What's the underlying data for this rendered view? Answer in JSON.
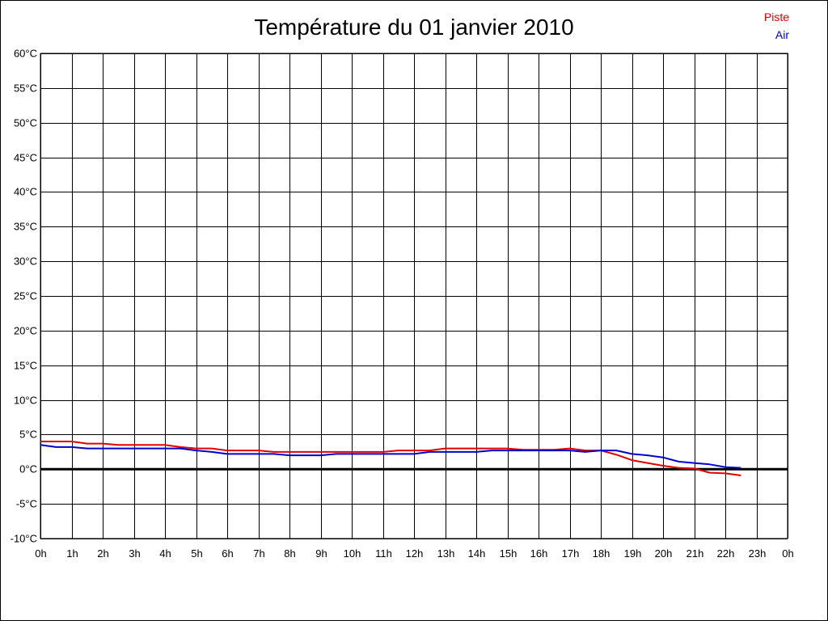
{
  "chart_data": {
    "type": "line",
    "title": "Température du 01 janvier 2010",
    "ylim": [
      -10,
      60
    ],
    "xlim": [
      0,
      24
    ],
    "y_ticks": [
      60,
      55,
      50,
      45,
      40,
      35,
      30,
      25,
      20,
      15,
      10,
      5,
      0,
      -5,
      -10
    ],
    "y_tick_labels": [
      "60°C",
      "55°C",
      "50°C",
      "45°C",
      "40°C",
      "35°C",
      "30°C",
      "25°C",
      "20°C",
      "15°C",
      "10°C",
      "5°C",
      "0°C",
      "-5°C",
      "-10°C"
    ],
    "x_tick_labels": [
      "0h",
      "1h",
      "2h",
      "3h",
      "4h",
      "5h",
      "6h",
      "7h",
      "8h",
      "9h",
      "10h",
      "11h",
      "12h",
      "13h",
      "14h",
      "15h",
      "16h",
      "17h",
      "18h",
      "19h",
      "20h",
      "21h",
      "22h",
      "23h",
      "0h"
    ],
    "grid": true,
    "zero_line": true,
    "legend_position": "top-right",
    "series": [
      {
        "name": "Piste",
        "color": "#e00000",
        "points": [
          [
            0,
            4.0
          ],
          [
            1,
            4.0
          ],
          [
            1.5,
            3.7
          ],
          [
            2,
            3.7
          ],
          [
            2.5,
            3.5
          ],
          [
            3,
            3.5
          ],
          [
            4,
            3.5
          ],
          [
            4.5,
            3.2
          ],
          [
            5,
            3.0
          ],
          [
            5.5,
            3.0
          ],
          [
            6,
            2.7
          ],
          [
            7,
            2.7
          ],
          [
            7.5,
            2.5
          ],
          [
            8,
            2.5
          ],
          [
            9,
            2.5
          ],
          [
            10,
            2.5
          ],
          [
            11,
            2.5
          ],
          [
            11.5,
            2.7
          ],
          [
            12,
            2.7
          ],
          [
            12.5,
            2.7
          ],
          [
            13,
            3.0
          ],
          [
            14,
            3.0
          ],
          [
            15,
            3.0
          ],
          [
            15.5,
            2.8
          ],
          [
            16,
            2.8
          ],
          [
            16.5,
            2.8
          ],
          [
            17,
            3.0
          ],
          [
            17.5,
            2.7
          ],
          [
            18,
            2.7
          ],
          [
            18.5,
            2.1
          ],
          [
            19,
            1.3
          ],
          [
            19.5,
            0.9
          ],
          [
            20,
            0.5
          ],
          [
            20.5,
            0.2
          ],
          [
            21,
            0.1
          ],
          [
            21.5,
            -0.5
          ],
          [
            22,
            -0.6
          ],
          [
            22.5,
            -0.9
          ]
        ]
      },
      {
        "name": "Air",
        "color": "#0000cc",
        "points": [
          [
            0,
            3.5
          ],
          [
            0.5,
            3.2
          ],
          [
            1,
            3.2
          ],
          [
            1.5,
            3.0
          ],
          [
            2,
            3.0
          ],
          [
            3,
            3.0
          ],
          [
            4,
            3.0
          ],
          [
            4.5,
            3.0
          ],
          [
            5,
            2.7
          ],
          [
            5.5,
            2.5
          ],
          [
            6,
            2.2
          ],
          [
            7,
            2.2
          ],
          [
            7.5,
            2.2
          ],
          [
            8,
            2.0
          ],
          [
            9,
            2.0
          ],
          [
            9.5,
            2.2
          ],
          [
            10,
            2.2
          ],
          [
            11,
            2.2
          ],
          [
            12,
            2.2
          ],
          [
            12.5,
            2.5
          ],
          [
            13,
            2.5
          ],
          [
            14,
            2.5
          ],
          [
            14.5,
            2.7
          ],
          [
            15,
            2.7
          ],
          [
            15.5,
            2.7
          ],
          [
            16,
            2.7
          ],
          [
            17,
            2.7
          ],
          [
            17.5,
            2.5
          ],
          [
            18,
            2.7
          ],
          [
            18.5,
            2.7
          ],
          [
            19,
            2.2
          ],
          [
            19.5,
            2.0
          ],
          [
            20,
            1.7
          ],
          [
            20.5,
            1.1
          ],
          [
            21,
            0.9
          ],
          [
            21.5,
            0.7
          ],
          [
            22,
            0.3
          ],
          [
            22.5,
            0.2
          ]
        ]
      }
    ]
  }
}
